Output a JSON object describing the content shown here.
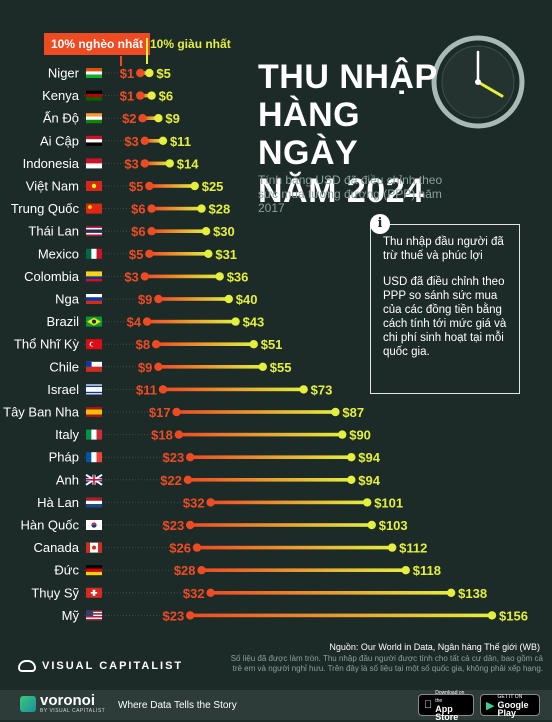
{
  "legend": {
    "low_label": "10% nghèo nhất",
    "high_label": "10% giàu nhất",
    "low_color": "#ef4b23",
    "high_color": "#e4ef3e"
  },
  "header": {
    "title": "THU NHẬP\nHÀNG NGÀY\nNĂM 2024",
    "subtitle": "Tính bằng USD đã điều chỉnh theo sức mua tương đương (PPP) năm 2017"
  },
  "info": {
    "icon": "i",
    "para1": "Thu nhập đầu người đã trừ thuế và phúc lợi",
    "para2": "USD đã điều chỉnh theo PPP so sánh sức mua của các đồng tiền bằng cách tính tới mức giá và chi phí sinh hoạt tại mỗi quốc gia."
  },
  "chart_data": {
    "type": "dumbbell",
    "series": [
      {
        "name": "10% nghèo nhất",
        "key": "low"
      },
      {
        "name": "10% giàu nhất",
        "key": "high"
      }
    ],
    "unit": "USD",
    "rows": [
      {
        "country": "Niger",
        "flag": "niger",
        "low": 1,
        "high": 5
      },
      {
        "country": "Kenya",
        "flag": "kenya",
        "low": 1,
        "high": 6
      },
      {
        "country": "Ấn Độ",
        "flag": "india",
        "low": 2,
        "high": 9
      },
      {
        "country": "Ai Cập",
        "flag": "egypt",
        "low": 3,
        "high": 11
      },
      {
        "country": "Indonesia",
        "flag": "indonesia",
        "low": 3,
        "high": 14
      },
      {
        "country": "Việt Nam",
        "flag": "vietnam",
        "low": 5,
        "high": 25
      },
      {
        "country": "Trung Quốc",
        "flag": "china",
        "low": 6,
        "high": 28
      },
      {
        "country": "Thái Lan",
        "flag": "thailand",
        "low": 6,
        "high": 30
      },
      {
        "country": "Mexico",
        "flag": "mexico",
        "low": 5,
        "high": 31
      },
      {
        "country": "Colombia",
        "flag": "colombia",
        "low": 3,
        "high": 36
      },
      {
        "country": "Nga",
        "flag": "russia",
        "low": 9,
        "high": 40
      },
      {
        "country": "Brazil",
        "flag": "brazil",
        "low": 4,
        "high": 43
      },
      {
        "country": "Thổ Nhĩ Kỳ",
        "flag": "turkey",
        "low": 8,
        "high": 51
      },
      {
        "country": "Chile",
        "flag": "chile",
        "low": 9,
        "high": 55
      },
      {
        "country": "Israel",
        "flag": "israel",
        "low": 11,
        "high": 73
      },
      {
        "country": "Tây Ban Nha",
        "flag": "spain",
        "low": 17,
        "high": 87
      },
      {
        "country": "Italy",
        "flag": "italy",
        "low": 18,
        "high": 90
      },
      {
        "country": "Pháp",
        "flag": "france",
        "low": 23,
        "high": 94
      },
      {
        "country": "Anh",
        "flag": "uk",
        "low": 22,
        "high": 94
      },
      {
        "country": "Hà Lan",
        "flag": "netherlands",
        "low": 32,
        "high": 101
      },
      {
        "country": "Hàn Quốc",
        "flag": "south-korea",
        "low": 23,
        "high": 103
      },
      {
        "country": "Canada",
        "flag": "canada",
        "low": 26,
        "high": 112
      },
      {
        "country": "Đức",
        "flag": "germany",
        "low": 28,
        "high": 118
      },
      {
        "country": "Thụy Sỹ",
        "flag": "switzerland",
        "low": 32,
        "high": 138
      },
      {
        "country": "Mỹ",
        "flag": "usa",
        "low": 23,
        "high": 156
      }
    ]
  },
  "footer": {
    "source": "Nguồn: Our World in Data, Ngân hàng Thế giới (WB)",
    "note": "Số liệu đã được làm tròn. Thu nhập đầu người được tính cho tất cả cư dân, bao gồm cả trẻ em và người nghỉ hưu. Trên đây là số liệu tại một số quốc gia, không phải xếp hạng.",
    "brand": "VISUAL CAPITALIST",
    "voronoi": "voronoi",
    "voronoi_sub": "BY VISUAL CAPITALIST",
    "tagline": "Where Data Tells the Story",
    "app_store_small": "Download on the",
    "app_store_big": "App Store",
    "google_play_small": "GET IT ON",
    "google_play_big": "Google Play"
  },
  "icons": {
    "clock": "clock-icon",
    "info": "info-icon",
    "apple": "apple-icon",
    "play": "play-icon"
  }
}
